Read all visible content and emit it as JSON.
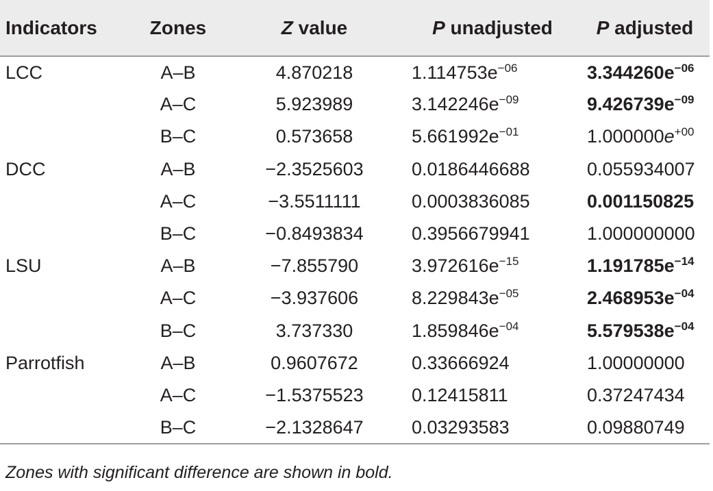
{
  "table": {
    "headers": {
      "indicators": "Indicators",
      "zones": "Zones",
      "z_sym": "Z",
      "z_rest": " value",
      "pu_sym": "P",
      "pu_rest": " unadjusted",
      "pa_sym": "P",
      "pa_rest": " adjusted"
    },
    "rows": [
      {
        "indicator": "LCC",
        "zone": "A–B",
        "z": "4.870218",
        "pu_base": "1.114753e",
        "pu_exp": "−06",
        "pa_base": "3.344260e",
        "pa_exp": "−06"
      },
      {
        "indicator": "",
        "zone": "A–C",
        "z": "5.923989",
        "pu_base": "3.142246e",
        "pu_exp": "−09",
        "pa_base": "9.426739e",
        "pa_exp": "−09"
      },
      {
        "indicator": "",
        "zone": "B–C",
        "z": "0.573658",
        "pu_base": "5.661992e",
        "pu_exp": "−01",
        "pa_base": "1.000000",
        "pa_e": "e",
        "pa_exp": "+00"
      },
      {
        "indicator": "DCC",
        "zone": "A–B",
        "z": "−2.3525603",
        "pu": "0.0186446688",
        "pa": "0.055934007"
      },
      {
        "indicator": "",
        "zone": "A–C",
        "z": "−3.5511111",
        "pu": "0.0003836085",
        "pa": "0.001150825"
      },
      {
        "indicator": "",
        "zone": "B–C",
        "z": "−0.8493834",
        "pu": "0.3956679941",
        "pa": "1.000000000"
      },
      {
        "indicator": "LSU",
        "zone": "A–B",
        "z": "−7.855790",
        "pu_base": "3.972616e",
        "pu_exp": "−15",
        "pa_base": "1.191785e",
        "pa_exp": "−14"
      },
      {
        "indicator": "",
        "zone": "A–C",
        "z": "−3.937606",
        "pu_base": "8.229843e",
        "pu_exp": "−05",
        "pa_base": "2.468953e",
        "pa_exp": "−04"
      },
      {
        "indicator": "",
        "zone": "B–C",
        "z": "3.737330",
        "pu_base": "1.859846e",
        "pu_exp": "−04",
        "pa_base": "5.579538e",
        "pa_exp": "−04"
      },
      {
        "indicator": "Parrotfish",
        "zone": "A–B",
        "z": "0.9607672",
        "pu": "0.33666924",
        "pa": "1.00000000"
      },
      {
        "indicator": "",
        "zone": "A–C",
        "z": "−1.5375523",
        "pu": "0.12415811",
        "pa": "0.37247434"
      },
      {
        "indicator": "",
        "zone": "B–C",
        "z": "−2.1328647",
        "pu": "0.03293583",
        "pa": "0.09880749"
      }
    ]
  },
  "note": "Zones with significant difference are shown in bold."
}
